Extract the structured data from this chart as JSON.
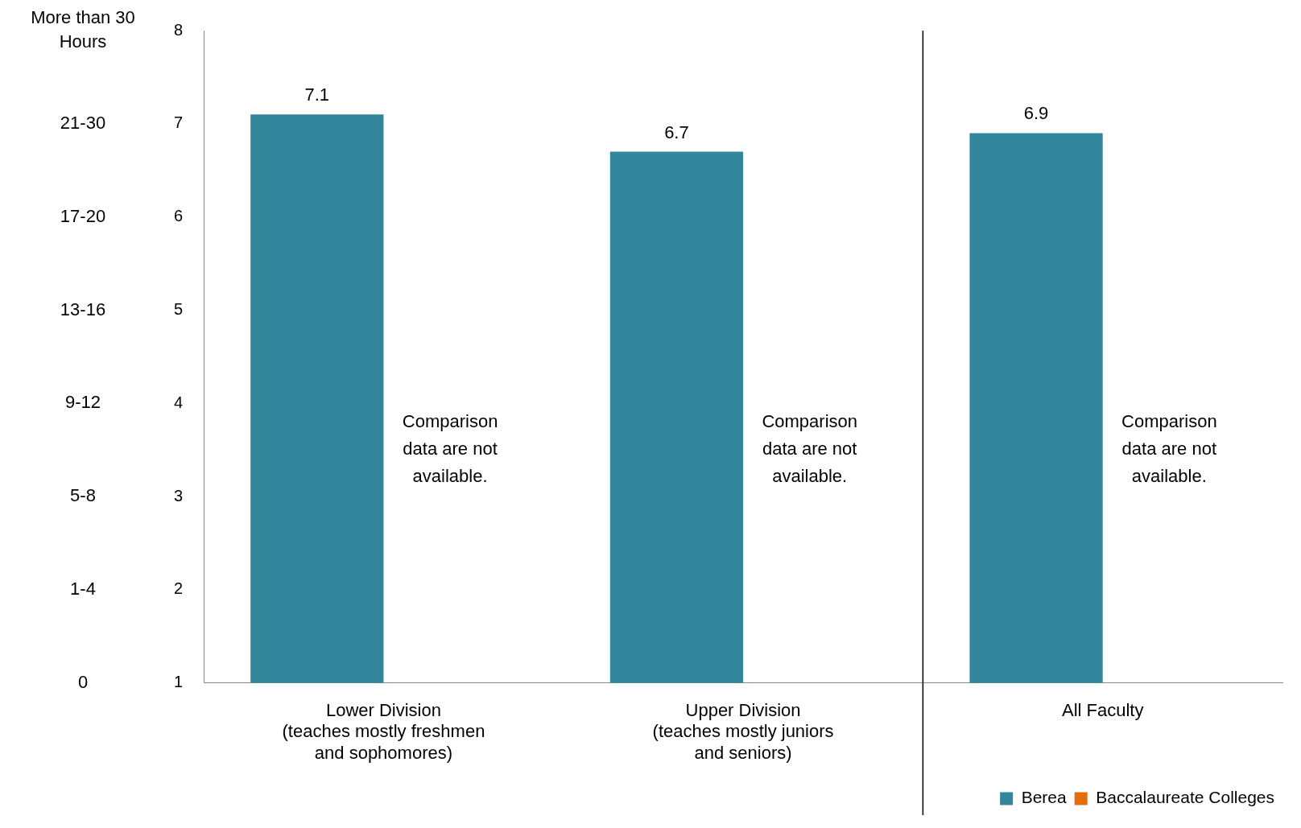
{
  "chart_data": {
    "type": "bar",
    "categories": [
      "Lower Division\n(teaches mostly freshmen\nand sophomores)",
      "Upper Division\n(teaches mostly juniors\nand seniors)",
      "All Faculty"
    ],
    "series": [
      {
        "name": "Berea",
        "color": "#31869b",
        "values": [
          7.1,
          6.7,
          6.9
        ]
      },
      {
        "name": "Baccalaureate Colleges",
        "color": "#e46c0a",
        "values": [
          null,
          null,
          null
        ]
      }
    ],
    "ylim": [
      1,
      8
    ],
    "yticks": [
      1,
      2,
      3,
      4,
      5,
      6,
      7,
      8
    ],
    "annotations": [
      "Comparison data are not available.",
      "Comparison data are not available.",
      "Comparison data are not available.",
      "0",
      "1-4",
      "5-8",
      "9-12",
      "13-16",
      "17-20",
      "21-30",
      "More than 30 Hours"
    ],
    "data_labels": true,
    "grid": false,
    "legend": "bottom right"
  }
}
